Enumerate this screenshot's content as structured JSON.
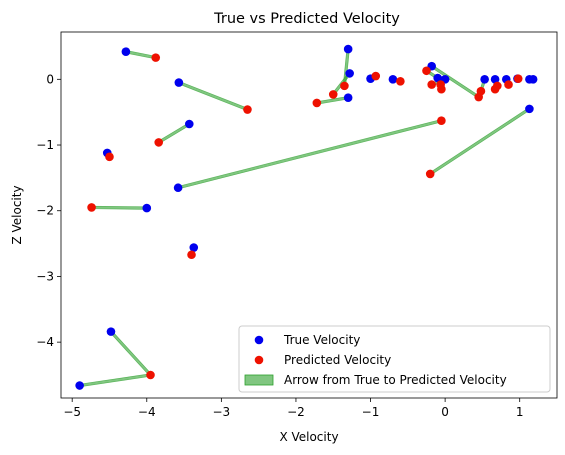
{
  "chart_data": {
    "type": "scatter",
    "title": "True vs Predicted Velocity",
    "xlabel": "X Velocity",
    "ylabel": "Z Velocity",
    "xlim": [
      -5.15,
      1.5
    ],
    "ylim": [
      -4.85,
      0.72
    ],
    "xticks": [
      -5,
      -4,
      -3,
      -2,
      -1,
      0,
      1
    ],
    "yticks": [
      -4,
      -3,
      -2,
      -1,
      0
    ],
    "grid": false,
    "legend_position": "lower-right",
    "colors": {
      "true": "#0000ee",
      "predicted": "#ee1100",
      "arrow": "#2ca02c"
    },
    "series": [
      {
        "name": "True Velocity",
        "points": [
          [
            -4.28,
            0.42
          ],
          [
            -3.57,
            -0.05
          ],
          [
            -3.43,
            -0.68
          ],
          [
            -4.53,
            -1.12
          ],
          [
            -3.58,
            -1.65
          ],
          [
            -4.0,
            -1.96
          ],
          [
            -3.37,
            -2.56
          ],
          [
            -4.48,
            -3.84
          ],
          [
            -4.9,
            -4.66
          ],
          [
            -1.3,
            0.46
          ],
          [
            -1.28,
            0.09
          ],
          [
            -1.3,
            -0.28
          ],
          [
            -1.0,
            0.01
          ],
          [
            -0.7,
            0.0
          ],
          [
            -0.18,
            0.2
          ],
          [
            -0.1,
            0.02
          ],
          [
            -0.05,
            -0.02
          ],
          [
            0.0,
            0.0
          ],
          [
            0.53,
            0.0
          ],
          [
            0.67,
            0.0
          ],
          [
            0.82,
            0.0
          ],
          [
            0.97,
            0.01
          ],
          [
            1.13,
            0.0
          ],
          [
            1.18,
            0.0
          ],
          [
            1.13,
            -0.45
          ]
        ]
      },
      {
        "name": "Predicted Velocity",
        "points": [
          [
            -3.88,
            0.33
          ],
          [
            -2.65,
            -0.46
          ],
          [
            -3.84,
            -0.96
          ],
          [
            -4.5,
            -1.18
          ],
          [
            -0.05,
            -0.63
          ],
          [
            -4.74,
            -1.95
          ],
          [
            -3.4,
            -2.67
          ],
          [
            -3.95,
            -4.5
          ],
          [
            -1.72,
            -0.36
          ],
          [
            -1.35,
            -0.1
          ],
          [
            -1.5,
            -0.23
          ],
          [
            -0.93,
            0.05
          ],
          [
            -0.6,
            -0.03
          ],
          [
            -0.25,
            0.13
          ],
          [
            -0.18,
            -0.08
          ],
          [
            -0.05,
            -0.15
          ],
          [
            -0.06,
            -0.08
          ],
          [
            0.45,
            -0.27
          ],
          [
            0.48,
            -0.18
          ],
          [
            0.67,
            -0.15
          ],
          [
            0.7,
            -0.1
          ],
          [
            0.85,
            -0.08
          ],
          [
            0.98,
            0.01
          ],
          [
            -0.2,
            -1.44
          ]
        ]
      }
    ],
    "arrows": [
      [
        [
          -4.28,
          0.42
        ],
        [
          -3.88,
          0.33
        ]
      ],
      [
        [
          -3.57,
          -0.05
        ],
        [
          -2.65,
          -0.46
        ]
      ],
      [
        [
          -3.43,
          -0.68
        ],
        [
          -3.84,
          -0.96
        ]
      ],
      [
        [
          -4.53,
          -1.12
        ],
        [
          -4.5,
          -1.18
        ]
      ],
      [
        [
          -3.58,
          -1.65
        ],
        [
          -0.05,
          -0.63
        ]
      ],
      [
        [
          -4.0,
          -1.96
        ],
        [
          -4.74,
          -1.95
        ]
      ],
      [
        [
          -3.37,
          -2.56
        ],
        [
          -3.4,
          -2.67
        ]
      ],
      [
        [
          -4.48,
          -3.84
        ],
        [
          -3.95,
          -4.5
        ]
      ],
      [
        [
          -4.9,
          -4.66
        ],
        [
          -3.95,
          -4.5
        ]
      ],
      [
        [
          -1.3,
          0.46
        ],
        [
          -1.35,
          -0.1
        ]
      ],
      [
        [
          -1.3,
          -0.28
        ],
        [
          -1.72,
          -0.36
        ]
      ],
      [
        [
          -1.28,
          0.09
        ],
        [
          -1.5,
          -0.23
        ]
      ],
      [
        [
          -1.0,
          0.01
        ],
        [
          -0.93,
          0.05
        ]
      ],
      [
        [
          -0.7,
          0.0
        ],
        [
          -0.6,
          -0.03
        ]
      ],
      [
        [
          -0.18,
          0.2
        ],
        [
          0.45,
          -0.27
        ]
      ],
      [
        [
          -0.1,
          0.02
        ],
        [
          -0.25,
          0.13
        ]
      ],
      [
        [
          -0.05,
          -0.02
        ],
        [
          -0.05,
          -0.15
        ]
      ],
      [
        [
          0.0,
          0.0
        ],
        [
          -0.18,
          -0.08
        ]
      ],
      [
        [
          0.53,
          0.0
        ],
        [
          0.48,
          -0.18
        ]
      ],
      [
        [
          0.67,
          0.0
        ],
        [
          0.67,
          -0.15
        ]
      ],
      [
        [
          0.82,
          0.0
        ],
        [
          0.85,
          -0.08
        ]
      ],
      [
        [
          0.97,
          0.01
        ],
        [
          0.98,
          0.01
        ]
      ],
      [
        [
          1.13,
          -0.45
        ],
        [
          -0.2,
          -1.44
        ]
      ]
    ],
    "legend": [
      {
        "label": "True Velocity",
        "marker": "dot",
        "color_key": "true"
      },
      {
        "label": "Predicted Velocity",
        "marker": "dot",
        "color_key": "predicted"
      },
      {
        "label": "Arrow from True to Predicted Velocity",
        "marker": "patch",
        "color_key": "arrow"
      }
    ]
  }
}
